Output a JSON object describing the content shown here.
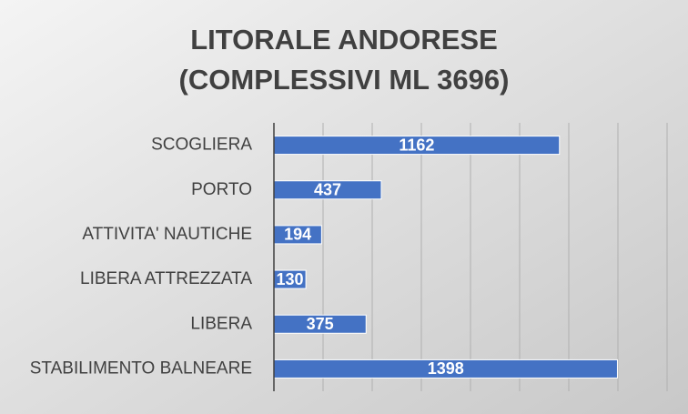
{
  "chart_data": {
    "type": "bar",
    "orientation": "horizontal",
    "title": [
      "LITORALE ANDORESE",
      "(COMPLESSIVI ML 3696)"
    ],
    "categories": [
      "SCOGLIERA",
      "PORTO",
      "ATTIVITA' NAUTICHE",
      "LIBERA ATTREZZATA",
      "LIBERA",
      "STABILIMENTO BALNEARE"
    ],
    "values": [
      1162,
      437,
      194,
      130,
      375,
      1398
    ],
    "color": "#4472c4",
    "xlim": [
      0,
      1600
    ],
    "xticks": [
      0,
      200,
      400,
      600,
      800,
      1000,
      1200,
      1400,
      1600
    ],
    "grid": true
  }
}
